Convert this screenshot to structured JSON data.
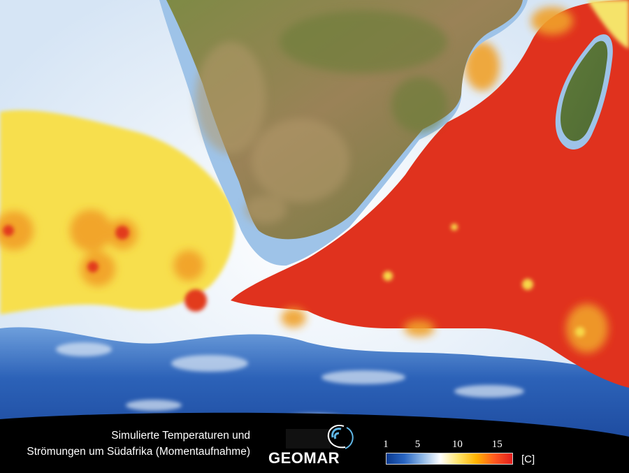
{
  "caption": {
    "line1": "Simulierte Temperaturen und",
    "line2": "Strömungen um Südafrika (Momentaufnahme)"
  },
  "logo": {
    "text": "GEOMAR",
    "icon": "wave-swirl-icon"
  },
  "colorbar": {
    "ticks": [
      "1",
      "5",
      "10",
      "15"
    ],
    "unit": "[C]",
    "range": [
      1,
      17
    ],
    "tick_values": [
      1,
      5,
      10,
      15
    ],
    "colors": [
      "#0b3a8f",
      "#2a66c2",
      "#8fb8e6",
      "#ffffff",
      "#ffe56b",
      "#ffb300",
      "#ff5a1f",
      "#e41e1e"
    ]
  },
  "map_colors": {
    "land": "#8a7a4c",
    "cold_sea": "#1f57a8",
    "cool_sea": "#cfe0f2",
    "moderate_sea": "#f9e45a",
    "warm_sea": "#e02a1c",
    "shelf": "#9ec3e8"
  }
}
